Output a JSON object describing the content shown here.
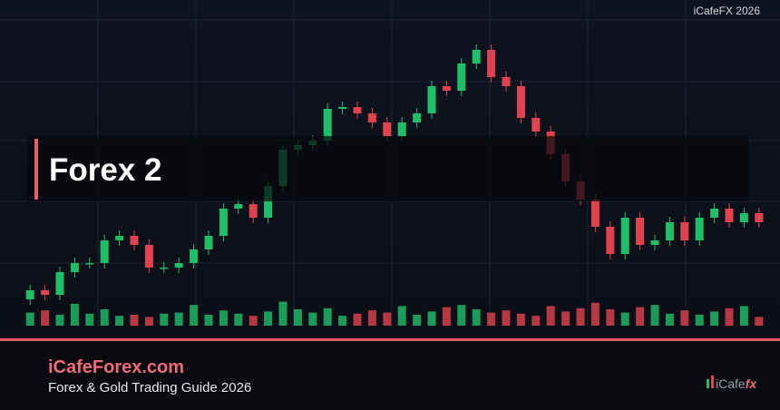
{
  "header": {
    "corner_label": "iCafeFX 2026",
    "title": "Forex 2"
  },
  "footer": {
    "site": "iCafeForex.com",
    "subtitle": "Forex & Gold Trading Guide 2026",
    "logo_main": "iCafe",
    "logo_accent": "fx"
  },
  "chart_data": {
    "type": "candlestick",
    "up_color": "#1fbf6a",
    "down_color": "#e0434f",
    "ylim": [
      0,
      320
    ],
    "volume_lim": [
      0,
      25
    ],
    "open": [
      30,
      40,
      35,
      60,
      70,
      70,
      95,
      100,
      90,
      65,
      65,
      70,
      85,
      100,
      130,
      135,
      120,
      155,
      195,
      200,
      205,
      240,
      242,
      235,
      225,
      210,
      225,
      235,
      265,
      260,
      290,
      305,
      275,
      265,
      230,
      215,
      190,
      160,
      140,
      110,
      80,
      120,
      90,
      95,
      115,
      95,
      120,
      130,
      115,
      125
    ],
    "high": [
      46,
      46,
      66,
      76,
      76,
      101,
      106,
      106,
      96,
      71,
      76,
      91,
      106,
      136,
      141,
      141,
      161,
      201,
      206,
      211,
      246,
      248,
      248,
      241,
      231,
      231,
      241,
      271,
      271,
      296,
      311,
      311,
      281,
      271,
      236,
      221,
      196,
      166,
      146,
      116,
      126,
      126,
      101,
      121,
      121,
      126,
      136,
      136,
      131,
      131
    ],
    "low": [
      24,
      29,
      29,
      54,
      64,
      64,
      89,
      84,
      59,
      59,
      59,
      64,
      79,
      94,
      124,
      114,
      114,
      149,
      189,
      194,
      199,
      234,
      229,
      219,
      204,
      204,
      219,
      229,
      254,
      254,
      284,
      269,
      259,
      224,
      209,
      184,
      154,
      134,
      104,
      74,
      74,
      84,
      84,
      89,
      89,
      89,
      114,
      109,
      109,
      109
    ],
    "close": [
      40,
      35,
      60,
      70,
      70,
      95,
      100,
      90,
      65,
      65,
      70,
      85,
      100,
      130,
      135,
      120,
      155,
      195,
      200,
      205,
      240,
      242,
      235,
      225,
      210,
      225,
      235,
      265,
      260,
      290,
      305,
      275,
      265,
      230,
      215,
      190,
      160,
      140,
      110,
      80,
      120,
      90,
      95,
      115,
      95,
      120,
      130,
      115,
      125,
      115
    ],
    "volume": [
      12,
      14,
      10,
      20,
      11,
      15,
      9,
      10,
      8,
      11,
      12,
      19,
      10,
      14,
      11,
      9,
      13,
      22,
      15,
      12,
      16,
      9,
      11,
      14,
      12,
      18,
      10,
      13,
      17,
      19,
      15,
      12,
      14,
      11,
      9,
      18,
      13,
      16,
      21,
      15,
      12,
      17,
      19,
      11,
      14,
      10,
      13,
      16,
      18,
      8
    ]
  }
}
